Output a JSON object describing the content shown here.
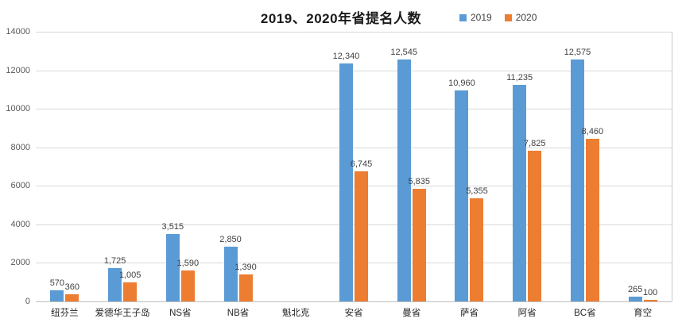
{
  "chart_data": {
    "type": "bar",
    "title": "2019、2020年省提名人数",
    "categories": [
      "纽芬兰",
      "爱德华王子岛",
      "NS省",
      "NB省",
      "魁北克",
      "安省",
      "曼省",
      "萨省",
      "阿省",
      "BC省",
      "育空"
    ],
    "series": [
      {
        "name": "2019",
        "color": "#5B9BD5",
        "values": [
          570,
          1725,
          3515,
          2850,
          null,
          12340,
          12545,
          10960,
          11235,
          12575,
          265
        ]
      },
      {
        "name": "2020",
        "color": "#ED7D31",
        "values": [
          360,
          1005,
          1590,
          1390,
          null,
          6745,
          5835,
          5355,
          7825,
          8460,
          100
        ]
      }
    ],
    "xlabel": "",
    "ylabel": "",
    "ylim": [
      0,
      14000
    ],
    "ytick_step": 2000,
    "ytick_labels": [
      "0",
      "2000",
      "4000",
      "6000",
      "8000",
      "10000",
      "12000",
      "14000"
    ],
    "grid": true,
    "legend_position": "top-right-of-title",
    "gridline_color": "#d9d9d9",
    "label_color": "#404040"
  }
}
